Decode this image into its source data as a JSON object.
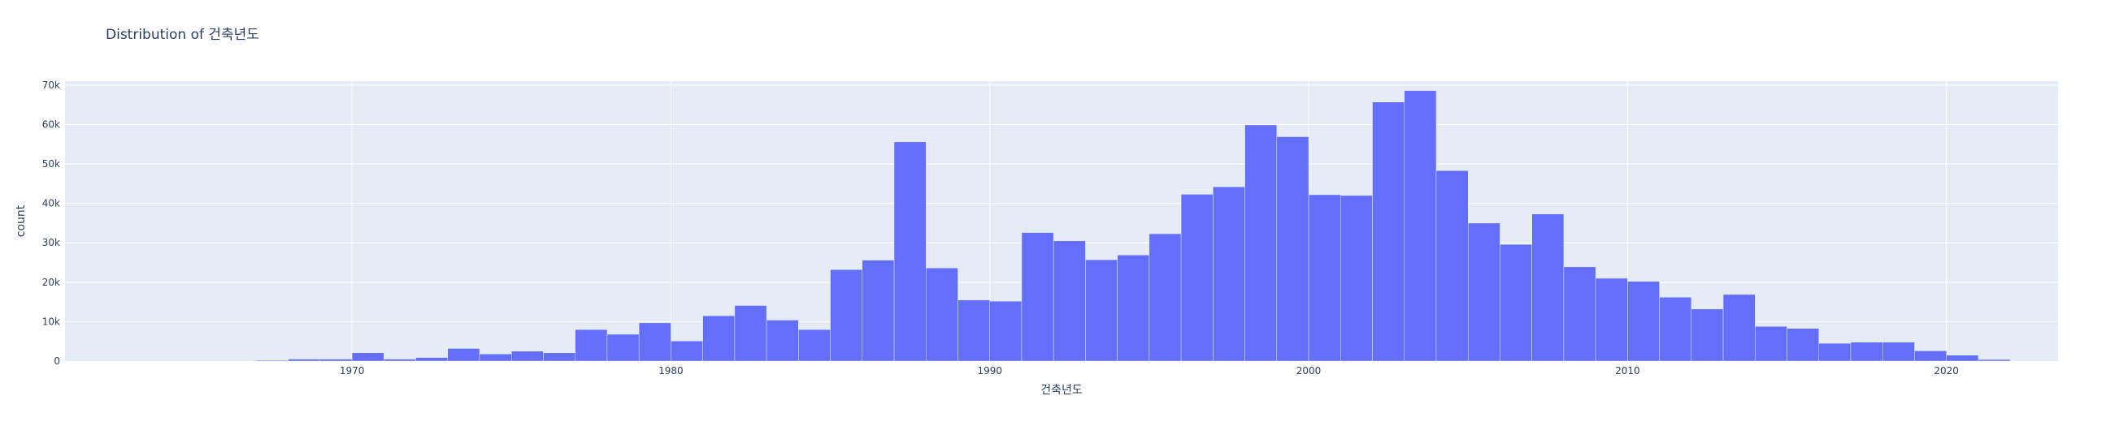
{
  "chart_data": {
    "type": "bar",
    "title": "Distribution of 건축년도",
    "xlabel": "건축년도",
    "ylabel": "count",
    "xlim": [
      1961,
      2023.5
    ],
    "ylim": [
      0,
      71000
    ],
    "bin_width": 1,
    "x_ticks": [
      1970,
      1980,
      1990,
      2000,
      2010,
      2020
    ],
    "y_ticks": [
      0,
      10000,
      20000,
      30000,
      40000,
      50000,
      60000,
      70000
    ],
    "y_tick_labels": [
      "0",
      "10k",
      "20k",
      "30k",
      "40k",
      "50k",
      "60k",
      "70k"
    ],
    "bins_start": [
      1967,
      1968,
      1969,
      1970,
      1971,
      1972,
      1973,
      1974,
      1975,
      1976,
      1977,
      1978,
      1979,
      1980,
      1981,
      1982,
      1983,
      1984,
      1985,
      1986,
      1987,
      1988,
      1989,
      1990,
      1991,
      1992,
      1993,
      1994,
      1995,
      1996,
      1997,
      1998,
      1999,
      2000,
      2001,
      2002,
      2003,
      2004,
      2005,
      2006,
      2007,
      2008,
      2009,
      2010,
      2011,
      2012,
      2013,
      2014,
      2015,
      2016,
      2017,
      2018,
      2019,
      2020,
      2021
    ],
    "values": [
      200,
      500,
      500,
      2100,
      500,
      900,
      3200,
      1800,
      2500,
      2100,
      8000,
      6800,
      9700,
      5100,
      11500,
      14100,
      10400,
      8000,
      23200,
      25600,
      55600,
      23600,
      15500,
      15200,
      32600,
      30500,
      25700,
      26900,
      32300,
      42300,
      44200,
      59900,
      56900,
      42200,
      42000,
      65700,
      68600,
      48300,
      35000,
      29600,
      37300,
      23900,
      21000,
      20200,
      16200,
      13200,
      16900,
      8800,
      8300,
      4500,
      4800,
      4800,
      2600,
      1500,
      400
    ],
    "bar_color": "#636efa",
    "plot_bgcolor": "#e5ecf6",
    "grid": true,
    "legend": "none"
  }
}
